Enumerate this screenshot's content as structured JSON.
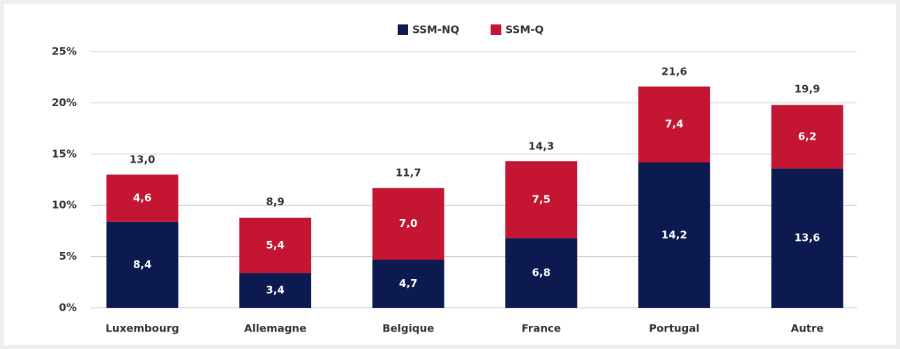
{
  "chart_data": {
    "type": "stacked_bar",
    "categories": [
      "Luxembourg",
      "Allemagne",
      "Belgique",
      "France",
      "Portugal",
      "Autre"
    ],
    "series": [
      {
        "name": "SSM-NQ",
        "color": "#0c1a4f",
        "values": [
          8.4,
          3.4,
          4.7,
          6.8,
          14.2,
          13.6
        ],
        "value_labels": [
          "8,4",
          "3,4",
          "4,7",
          "6,8",
          "14,2",
          "13,6"
        ]
      },
      {
        "name": "SSM-Q",
        "color": "#c41533",
        "values": [
          4.6,
          5.4,
          7.0,
          7.5,
          7.4,
          6.2
        ],
        "value_labels": [
          "4,6",
          "5,4",
          "7,0",
          "7,5",
          "7,4",
          "6,2"
        ]
      }
    ],
    "totals": [
      13.0,
      8.9,
      11.7,
      14.3,
      21.6,
      19.9
    ],
    "total_labels": [
      "13,0",
      "8,9",
      "11,7",
      "14,3",
      "21,6",
      "19,9"
    ],
    "ylim": [
      0,
      25
    ],
    "yticks": [
      {
        "value": 0,
        "label": "0%"
      },
      {
        "value": 5,
        "label": "5%"
      },
      {
        "value": 10,
        "label": "10%"
      },
      {
        "value": 15,
        "label": "15%"
      },
      {
        "value": 20,
        "label": "20%"
      },
      {
        "value": 25,
        "label": "25%"
      }
    ],
    "grid": true,
    "legend": "top"
  }
}
